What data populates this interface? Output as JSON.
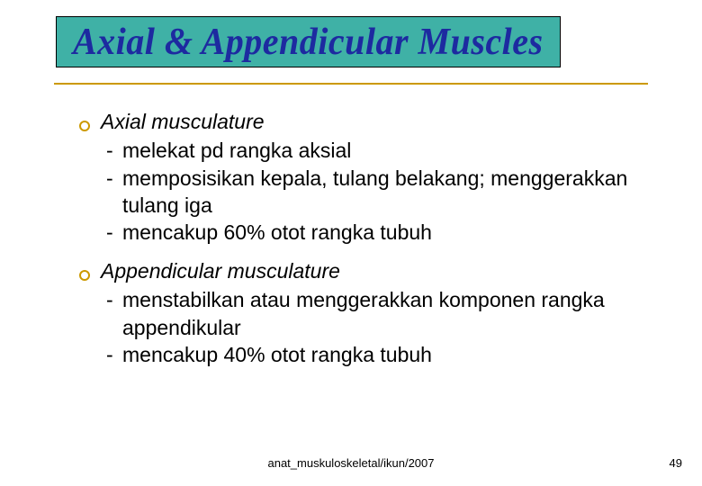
{
  "title": {
    "text": "Axial & Appendicular Muscles",
    "background_color": "#3fb1a6",
    "text_color": "#1d2aa0"
  },
  "divider_color": "#cc9900",
  "bullet_border_color": "#cc9900",
  "sections": [
    {
      "heading": "Axial musculature",
      "items": [
        {
          "dash": "-",
          "text": "melekat pd rangka aksial"
        },
        {
          "dash": "-",
          "text": "memposisikan kepala, tulang belakang; menggerakkan tulang iga"
        },
        {
          "dash": "-",
          "text": "mencakup 60% otot rangka tubuh"
        }
      ]
    },
    {
      "heading": "Appendicular musculature",
      "items": [
        {
          "dash": "-",
          "text": "menstabilkan atau menggerakkan komponen rangka appendikular"
        },
        {
          "dash": "-",
          "text": "mencakup 40% otot rangka tubuh"
        }
      ]
    }
  ],
  "footer": "anat_muskuloskeletal/ikun/2007",
  "page_number": "49"
}
